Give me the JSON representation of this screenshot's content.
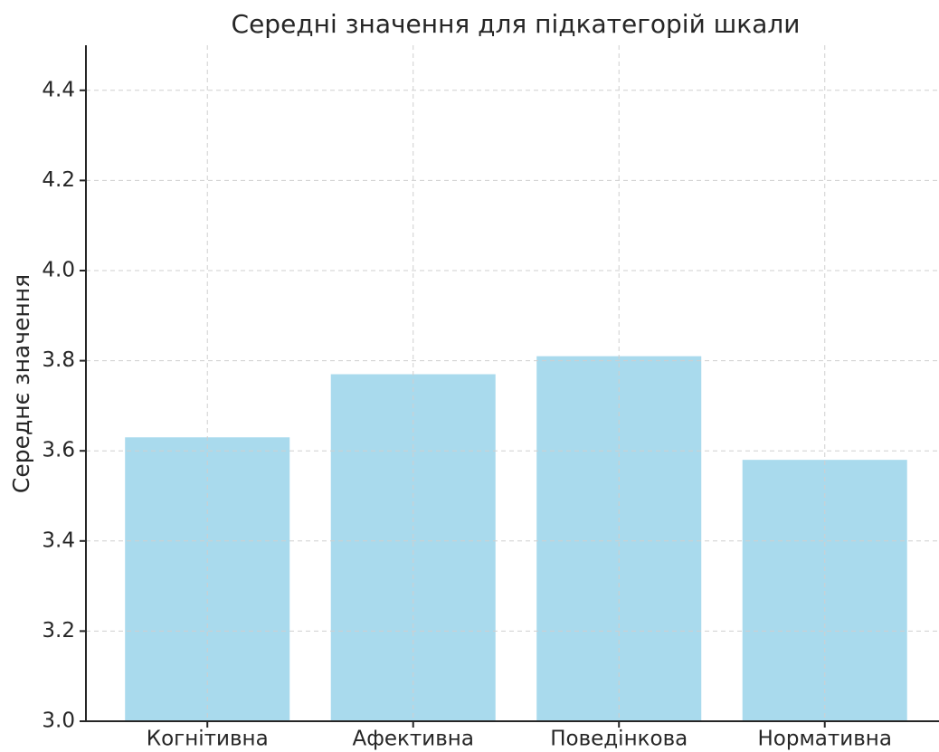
{
  "chart_data": {
    "type": "bar",
    "title": "Середні значення для підкатегорій шкали",
    "ylabel": "Середнє значення",
    "categories": [
      "Когнітивна",
      "Афективна",
      "Поведінкова",
      "Нормативна"
    ],
    "values": [
      3.63,
      3.77,
      3.81,
      3.58
    ],
    "color": "#a9daed",
    "ylim": [
      3.0,
      4.5
    ],
    "yticks": [
      {
        "value": 3,
        "label": "3.0"
      },
      3.2,
      3.4,
      3.6,
      3.8,
      {
        "value": 4,
        "label": "4.0"
      },
      4.2,
      4.4
    ],
    "grid": true
  }
}
